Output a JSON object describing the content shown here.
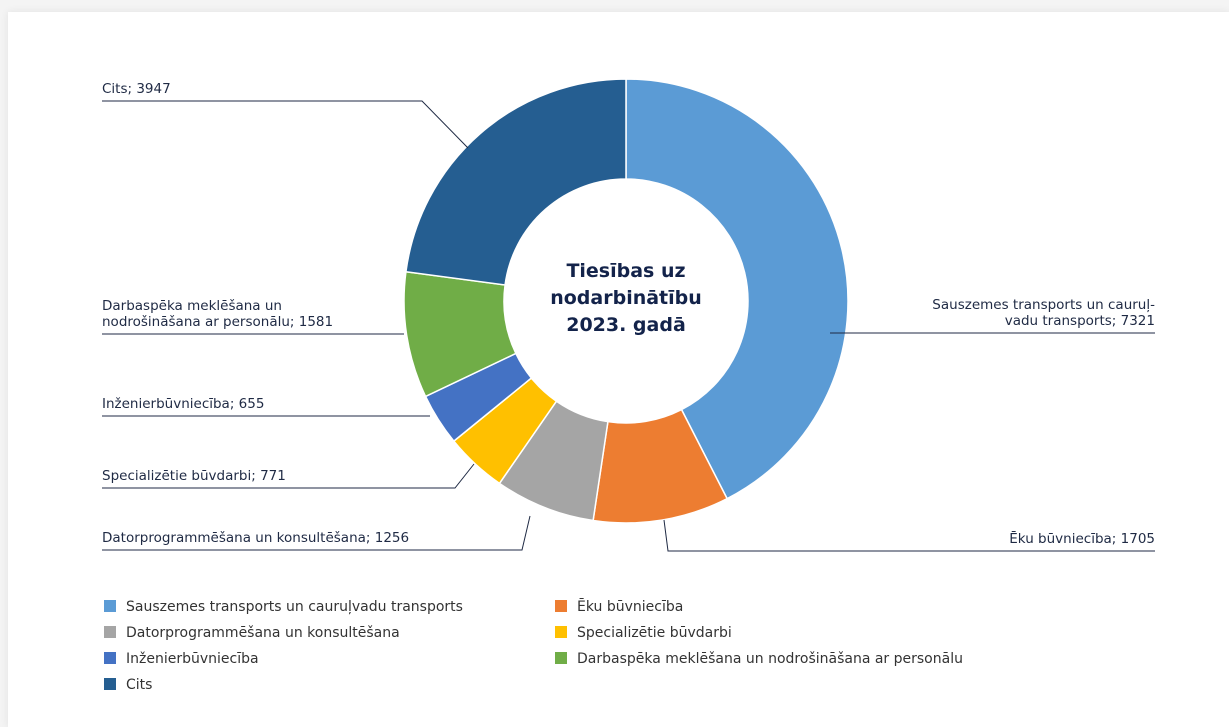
{
  "chart_data": {
    "type": "donut",
    "title": "Tiesības uz nodarbinātību 2023. gadā",
    "categories": [
      "Sauszemes transports un cauruļvadu transports",
      "Ēku būvniecība",
      "Datorprogrammēšana un konsultēšana",
      "Specializētie būvdarbi",
      "Inženierbūvniecība",
      "Darbaspēka meklēšana un nodrošināšana ar personālu",
      "Cits"
    ],
    "values": [
      7321,
      1705,
      1256,
      771,
      655,
      1581,
      3947
    ],
    "value_labels": [
      "Sauszemes transports un cauruļ-\nvadu transports; 7321",
      "Ēku būvniecība; 1705",
      "Datorprogrammēšana un konsultēšana; 1256",
      "Specializētie būvdarbi; 771",
      "Inženierbūvniecība; 655",
      "Darbaspēka meklēšana un\nnodrošināšana ar personālu; 1581",
      "Cits; 3947"
    ],
    "colors": [
      "#5b9bd5",
      "#ed7d31",
      "#a5a5a5",
      "#ffc000",
      "#4472c4",
      "#70ad47",
      "#255e91"
    ],
    "legend": "bottom"
  }
}
